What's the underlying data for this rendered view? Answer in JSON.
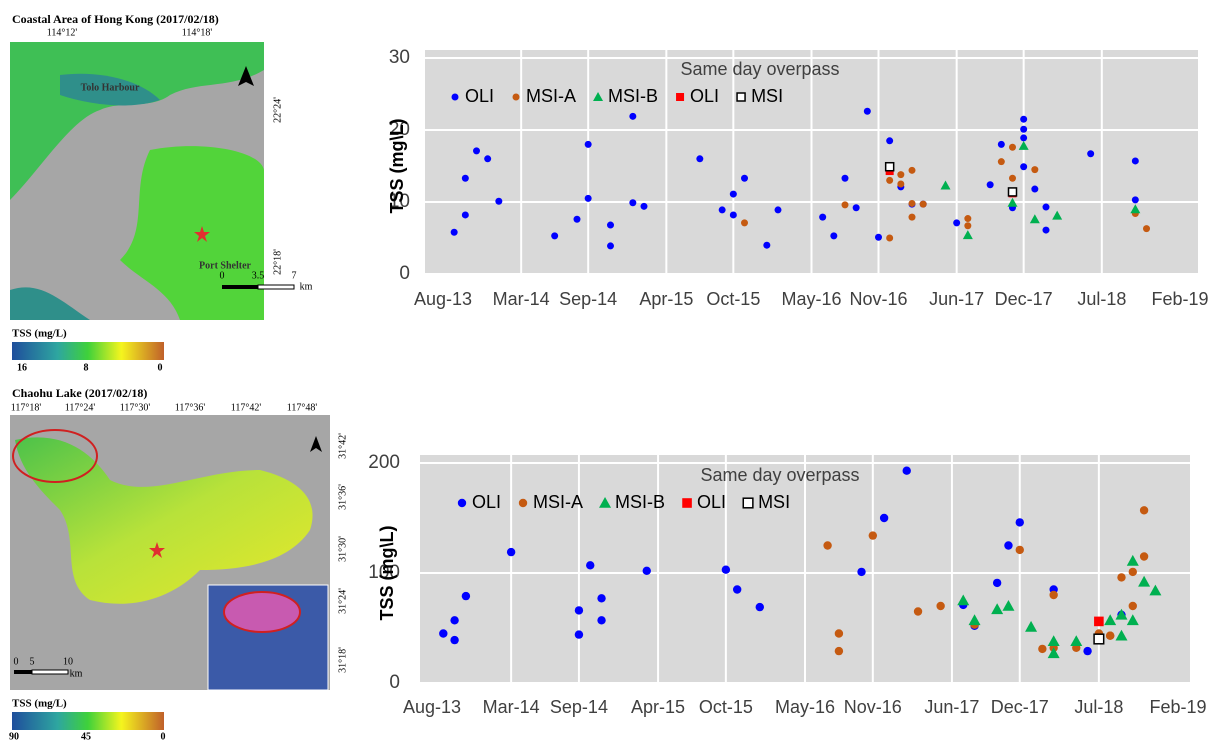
{
  "maps": [
    {
      "title": "Coastal Area of Hong Kong (2017/02/18)",
      "top_ticks": [
        "114°12'",
        "114°18'"
      ],
      "right_ticks": [
        "22°24'",
        "22°18'"
      ],
      "places": [
        "Tolo Harbour",
        "Port Shelter"
      ],
      "scale": [
        "0",
        "3.5",
        "7",
        "km"
      ],
      "colorbar_title": "TSS (mg/L)",
      "colorbar_labels": [
        "16",
        "8",
        "0"
      ]
    },
    {
      "title": "Chaohu Lake (2017/02/18)",
      "top_ticks": [
        "117°18'",
        "117°24'",
        "117°30'",
        "117°36'",
        "117°42'",
        "117°48'"
      ],
      "right_ticks": [
        "31°42'",
        "31°36'",
        "31°30'",
        "31°24'",
        "31°18'"
      ],
      "scale": [
        "0",
        "5",
        "10",
        "km"
      ],
      "colorbar_title": "TSS (mg/L)",
      "colorbar_labels": [
        "90",
        "45",
        "0"
      ]
    }
  ],
  "chart_data": [
    {
      "type": "scatter",
      "y_label": "TSS (mg\\L)",
      "legend_title": "Same day overpass",
      "xlim": [
        "2013-08",
        "2019-02"
      ],
      "ylim": [
        0,
        30
      ],
      "yticks": [
        0,
        10,
        20,
        30
      ],
      "grid": true,
      "xticks": [
        {
          "value": "2013-08",
          "label": "Aug-13"
        },
        {
          "value": "2014-03",
          "label": "Mar-14"
        },
        {
          "value": "2014-09",
          "label": "Sep-14"
        },
        {
          "value": "2015-04",
          "label": "Apr-15"
        },
        {
          "value": "2015-10",
          "label": "Oct-15"
        },
        {
          "value": "2016-05",
          "label": "May-16"
        },
        {
          "value": "2016-11",
          "label": "Nov-16"
        },
        {
          "value": "2017-06",
          "label": "Jun-17"
        },
        {
          "value": "2017-12",
          "label": "Dec-17"
        },
        {
          "value": "2018-07",
          "label": "Jul-18"
        },
        {
          "value": "2019-02",
          "label": "Feb-19"
        }
      ],
      "series": [
        {
          "name": "OLI",
          "color": "#0000ff",
          "marker": "circle",
          "x": [
            "2013-09",
            "2013-10",
            "2013-10",
            "2013-11",
            "2013-12",
            "2014-01",
            "2014-06",
            "2014-08",
            "2014-09",
            "2014-09",
            "2014-11",
            "2014-11",
            "2015-01",
            "2015-01",
            "2015-02",
            "2015-07",
            "2015-09",
            "2015-10",
            "2015-10",
            "2015-11",
            "2016-01",
            "2016-02",
            "2016-06",
            "2016-07",
            "2016-08",
            "2016-09",
            "2016-10",
            "2016-11",
            "2016-12",
            "2017-01",
            "2017-02",
            "2017-03",
            "2017-06",
            "2017-09",
            "2017-10",
            "2017-11",
            "2017-12",
            "2017-12",
            "2017-12",
            "2017-12",
            "2018-01",
            "2018-02",
            "2018-02",
            "2018-06",
            "2018-10",
            "2018-10"
          ],
          "values": [
            5.8,
            8.2,
            13.3,
            17.1,
            16,
            10.1,
            5.3,
            7.6,
            18,
            10.5,
            6.8,
            3.9,
            9.9,
            21.9,
            9.4,
            16,
            8.9,
            11.1,
            8.2,
            13.3,
            4,
            8.9,
            7.9,
            5.3,
            13.3,
            9.2,
            22.6,
            5.1,
            18.5,
            12.1,
            9.7,
            9.7,
            7.1,
            12.4,
            18,
            9.2,
            14.9,
            18.9,
            20.1,
            21.5,
            11.8,
            6.1,
            9.3,
            16.7,
            10.3,
            15.7
          ]
        },
        {
          "name": "MSI-A",
          "color": "#c55a11",
          "marker": "circle",
          "x": [
            "2015-11",
            "2016-08",
            "2016-12",
            "2016-12",
            "2017-01",
            "2017-01",
            "2017-02",
            "2017-02",
            "2017-02",
            "2017-03",
            "2017-07",
            "2017-07",
            "2017-10",
            "2017-11",
            "2017-11",
            "2018-01",
            "2018-10",
            "2018-11"
          ],
          "values": [
            7.1,
            9.6,
            5,
            13,
            12.5,
            13.8,
            14.4,
            9.8,
            7.9,
            9.7,
            6.7,
            7.7,
            15.6,
            13.3,
            17.6,
            14.5,
            8.4,
            6.3
          ]
        },
        {
          "name": "MSI-B",
          "color": "#00b050",
          "marker": "triangle",
          "x": [
            "2017-05",
            "2017-07",
            "2017-11",
            "2017-12",
            "2018-01",
            "2018-03",
            "2018-10"
          ],
          "values": [
            12.3,
            5.4,
            9.9,
            17.8,
            7.6,
            8.1,
            9
          ]
        },
        {
          "name": "OLI",
          "color": "#ff0000",
          "marker": "square",
          "x": [
            "2016-12",
            "2017-11"
          ],
          "values": [
            14.3,
            11.2
          ]
        },
        {
          "name": "MSI",
          "color": "#000000",
          "marker": "open-square",
          "x": [
            "2016-12",
            "2017-11"
          ],
          "values": [
            14.9,
            11.4
          ]
        }
      ]
    },
    {
      "type": "scatter",
      "y_label": "TSS (mg\\L)",
      "legend_title": "Same day overpass",
      "xlim": [
        "2013-08",
        "2019-02"
      ],
      "ylim": [
        0,
        200
      ],
      "yticks": [
        0,
        100,
        200
      ],
      "grid": true,
      "xticks": [
        {
          "value": "2013-08",
          "label": "Aug-13"
        },
        {
          "value": "2014-03",
          "label": "Mar-14"
        },
        {
          "value": "2014-09",
          "label": "Sep-14"
        },
        {
          "value": "2015-04",
          "label": "Apr-15"
        },
        {
          "value": "2015-10",
          "label": "Oct-15"
        },
        {
          "value": "2016-05",
          "label": "May-16"
        },
        {
          "value": "2016-11",
          "label": "Nov-16"
        },
        {
          "value": "2017-06",
          "label": "Jun-17"
        },
        {
          "value": "2017-12",
          "label": "Dec-17"
        },
        {
          "value": "2018-07",
          "label": "Jul-18"
        },
        {
          "value": "2019-02",
          "label": "Feb-19"
        }
      ],
      "series": [
        {
          "name": "OLI",
          "color": "#0000ff",
          "marker": "circle",
          "x": [
            "2013-09",
            "2013-10",
            "2013-10",
            "2013-11",
            "2014-03",
            "2014-09",
            "2014-09",
            "2014-10",
            "2014-11",
            "2014-11",
            "2015-03",
            "2015-10",
            "2015-11",
            "2016-01",
            "2016-10",
            "2016-12",
            "2017-02",
            "2017-07",
            "2017-08",
            "2017-10",
            "2017-11",
            "2017-12",
            "2018-03",
            "2018-06",
            "2018-09"
          ],
          "values": [
            45,
            57,
            39,
            79,
            119,
            66,
            44,
            107,
            77,
            57,
            102,
            103,
            85,
            69,
            101,
            150,
            193,
            71,
            52,
            91,
            125,
            146,
            85,
            29,
            62
          ]
        },
        {
          "name": "MSI-A",
          "color": "#c55a11",
          "marker": "circle",
          "x": [
            "2016-07",
            "2016-08",
            "2016-08",
            "2016-11",
            "2017-03",
            "2017-05",
            "2017-08",
            "2017-12",
            "2018-02",
            "2018-03",
            "2018-03",
            "2018-05",
            "2018-07",
            "2018-08",
            "2018-08",
            "2018-09",
            "2018-10",
            "2018-10",
            "2018-11",
            "2018-11"
          ],
          "values": [
            125,
            45,
            29,
            134,
            65,
            70,
            53,
            121,
            31,
            32,
            80,
            32,
            45,
            43,
            43,
            96,
            70,
            101,
            157,
            115
          ]
        },
        {
          "name": "MSI-B",
          "color": "#00b050",
          "marker": "triangle",
          "x": [
            "2017-07",
            "2017-08",
            "2017-10",
            "2017-11",
            "2018-01",
            "2018-03",
            "2018-03",
            "2018-05",
            "2018-08",
            "2018-09",
            "2018-09",
            "2018-10",
            "2018-10",
            "2018-11",
            "2018-12"
          ],
          "values": [
            75,
            57,
            67,
            70,
            51,
            27,
            38,
            38,
            57,
            43,
            62,
            111,
            57,
            92,
            84
          ]
        },
        {
          "name": "OLI",
          "color": "#ff0000",
          "marker": "square",
          "x": [
            "2018-07"
          ],
          "values": [
            56
          ]
        },
        {
          "name": "MSI",
          "color": "#000000",
          "marker": "open-square",
          "x": [
            "2018-07"
          ],
          "values": [
            40
          ]
        }
      ]
    }
  ]
}
